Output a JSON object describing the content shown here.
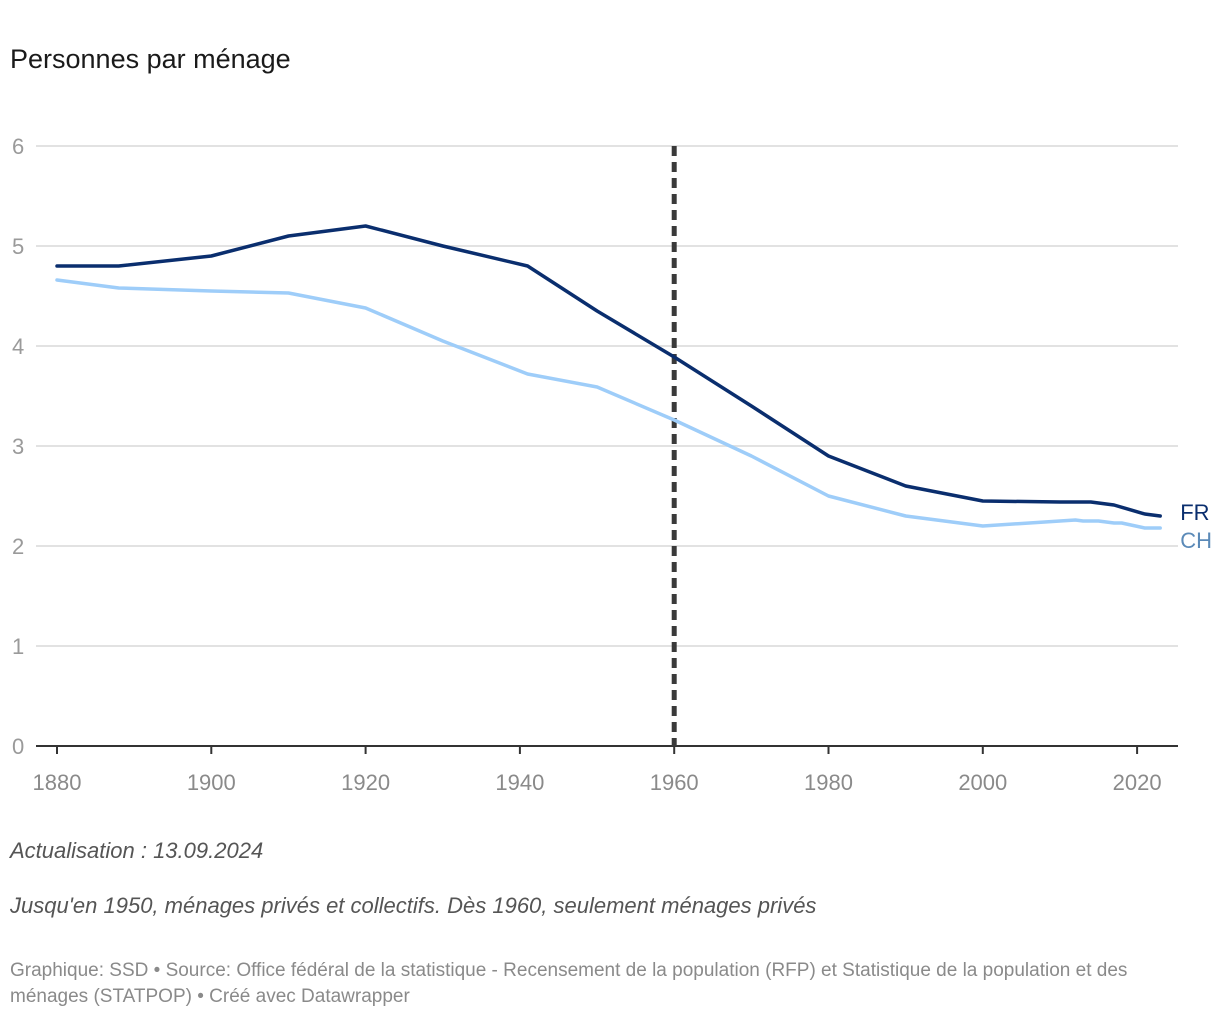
{
  "chart_data": {
    "type": "line",
    "title": "Personnes par ménage",
    "xlabel": "",
    "ylabel": "",
    "xlim": [
      1880,
      2023
    ],
    "ylim": [
      0,
      6
    ],
    "yticks": [
      0,
      1,
      2,
      3,
      4,
      5,
      6
    ],
    "xticks": [
      1880,
      1900,
      1920,
      1940,
      1960,
      1980,
      2000,
      2020
    ],
    "grid": true,
    "reference_line": {
      "x": 1960,
      "style": "dashed"
    },
    "series": [
      {
        "name": "FR",
        "color": "#0a2e6e",
        "points": [
          [
            1880,
            4.8
          ],
          [
            1888,
            4.8
          ],
          [
            1900,
            4.9
          ],
          [
            1910,
            5.1
          ],
          [
            1920,
            5.2
          ],
          [
            1930,
            5.0
          ],
          [
            1941,
            4.8
          ],
          [
            1950,
            4.35
          ],
          [
            1960,
            3.89
          ],
          [
            1970,
            3.4
          ],
          [
            1980,
            2.9
          ],
          [
            1990,
            2.6
          ],
          [
            2000,
            2.45
          ],
          [
            2010,
            2.44
          ],
          [
            2014,
            2.44
          ],
          [
            2017,
            2.41
          ],
          [
            2021,
            2.32
          ],
          [
            2023,
            2.3
          ]
        ]
      },
      {
        "name": "CH",
        "color": "#9ecdf9",
        "points": [
          [
            1880,
            4.66
          ],
          [
            1888,
            4.58
          ],
          [
            1900,
            4.55
          ],
          [
            1910,
            4.53
          ],
          [
            1920,
            4.38
          ],
          [
            1930,
            4.05
          ],
          [
            1941,
            3.72
          ],
          [
            1950,
            3.59
          ],
          [
            1960,
            3.26
          ],
          [
            1970,
            2.9
          ],
          [
            1980,
            2.5
          ],
          [
            1990,
            2.3
          ],
          [
            2000,
            2.2
          ],
          [
            2010,
            2.25
          ],
          [
            2012,
            2.26
          ],
          [
            2013,
            2.25
          ],
          [
            2015,
            2.25
          ],
          [
            2017,
            2.23
          ],
          [
            2018,
            2.23
          ],
          [
            2021,
            2.18
          ],
          [
            2023,
            2.18
          ]
        ]
      }
    ],
    "label_colors": {
      "FR": "#0a2e6e",
      "CH": "#5b8ab8"
    }
  },
  "notes": {
    "update": "Actualisation : 13.09.2024",
    "scope": "Jusqu'en 1950, ménages privés et collectifs. Dès 1960, seulement ménages privés"
  },
  "footer": {
    "credit": "Graphique: SSD • Source: Office fédéral de la statistique - Recensement de la population (RFP) et Statistique de la population et des ménages (STATPOP) • Créé avec Datawrapper"
  },
  "colors": {
    "grid": "#e2e2e2",
    "axis": "#333333",
    "reference": "#3a3a3a"
  }
}
